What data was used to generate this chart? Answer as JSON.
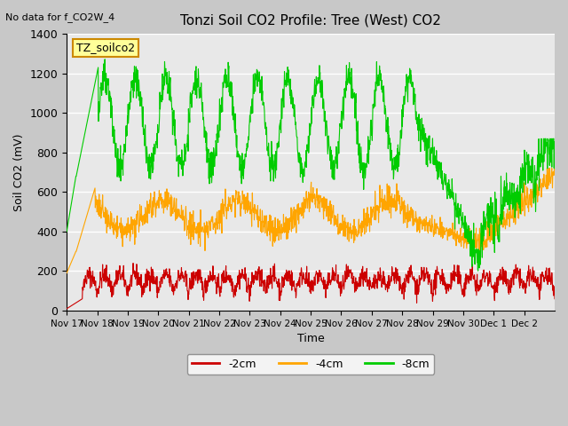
{
  "title": "Tonzi Soil CO2 Profile: Tree (West) CO2",
  "no_data_label": "No data for f_CO2W_4",
  "sensor_label": "TZ_soilco2",
  "ylabel": "Soil CO2 (mV)",
  "xlabel": "Time",
  "ylim": [
    0,
    1400
  ],
  "yticks": [
    0,
    200,
    400,
    600,
    800,
    1000,
    1200,
    1400
  ],
  "x_tick_labels": [
    "Nov 17",
    "Nov 18",
    "Nov 19",
    "Nov 20",
    "Nov 21",
    "Nov 22",
    "Nov 23",
    "Nov 24",
    "Nov 25",
    "Nov 26",
    "Nov 27",
    "Nov 28",
    "Nov 29",
    "Nov 30",
    "Dec 1",
    "Dec 2"
  ],
  "colors": {
    "neg2cm": "#cc0000",
    "neg4cm": "#ffa500",
    "neg8cm": "#00cc00",
    "sensor_box_bg": "#ffff99",
    "sensor_box_border": "#cc8800"
  },
  "legend_labels": [
    "-2cm",
    "-4cm",
    "-8cm"
  ],
  "figsize": [
    6.4,
    4.8
  ],
  "dpi": 100
}
